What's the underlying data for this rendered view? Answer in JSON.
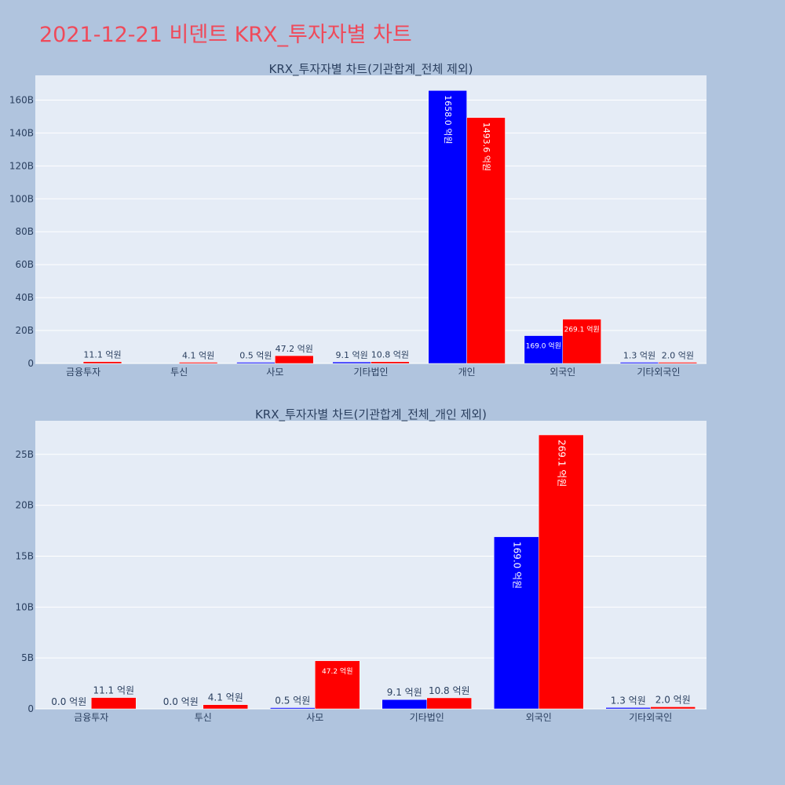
{
  "page": {
    "title": "2021-12-21 비덴트 KRX_투자자별 차트"
  },
  "colors": {
    "background": "#b0c4de",
    "plot_bg": "#e5ecf6",
    "title": "#ef4a5a",
    "series_1": "#0000ff",
    "series_2": "#ff0000"
  },
  "chart_data": [
    {
      "type": "bar",
      "title": "KRX_투자자별 차트(기관합계_전체 제외)",
      "categories": [
        "금융투자",
        "투신",
        "사모",
        "기타법인",
        "개인",
        "외국인",
        "기타외국인"
      ],
      "series": [
        {
          "color": "#0000ff",
          "values": [
            0.0,
            0.0,
            0.05,
            0.91,
            165.8,
            16.9,
            0.13
          ],
          "labels": [
            "",
            "",
            "0.5 억원",
            "9.1 억원",
            "1658.0 억원",
            "169.0 억원",
            "1.3 억원"
          ]
        },
        {
          "color": "#ff0000",
          "values": [
            1.11,
            0.41,
            4.72,
            1.08,
            149.36,
            26.91,
            0.2
          ],
          "labels": [
            "11.1 억원",
            "4.1 억원",
            "47.2 억원",
            "10.8 억원",
            "1493.6 억원",
            "269.1 억원",
            "2.0 억원"
          ]
        }
      ],
      "ylim": [
        0,
        175
      ],
      "yticks": [
        0,
        20,
        40,
        60,
        80,
        100,
        120,
        140,
        160
      ],
      "ytick_labels": [
        "0",
        "20B",
        "40B",
        "60B",
        "80B",
        "100B",
        "120B",
        "140B",
        "160B"
      ],
      "grid": true,
      "bar_mode": "group"
    },
    {
      "type": "bar",
      "title": "KRX_투자자별 차트(기관합계_전체_개인 제외)",
      "categories": [
        "금융투자",
        "투신",
        "사모",
        "기타법인",
        "외국인",
        "기타외국인"
      ],
      "series": [
        {
          "color": "#0000ff",
          "values": [
            0.0,
            0.0,
            0.05,
            0.91,
            16.9,
            0.13
          ],
          "labels": [
            "0.0 억원",
            "0.0 억원",
            "0.5 억원",
            "9.1 억원",
            "169.0 억원",
            "1.3 억원"
          ]
        },
        {
          "color": "#ff0000",
          "values": [
            1.11,
            0.41,
            4.72,
            1.08,
            26.91,
            0.2
          ],
          "labels": [
            "11.1 억원",
            "4.1 억원",
            "47.2 억원",
            "10.8 억원",
            "269.1 억원",
            "2.0 억원"
          ]
        }
      ],
      "ylim": [
        0,
        28.3
      ],
      "yticks": [
        0,
        5,
        10,
        15,
        20,
        25
      ],
      "ytick_labels": [
        "0",
        "5B",
        "10B",
        "15B",
        "20B",
        "25B"
      ],
      "grid": true,
      "bar_mode": "group"
    }
  ]
}
